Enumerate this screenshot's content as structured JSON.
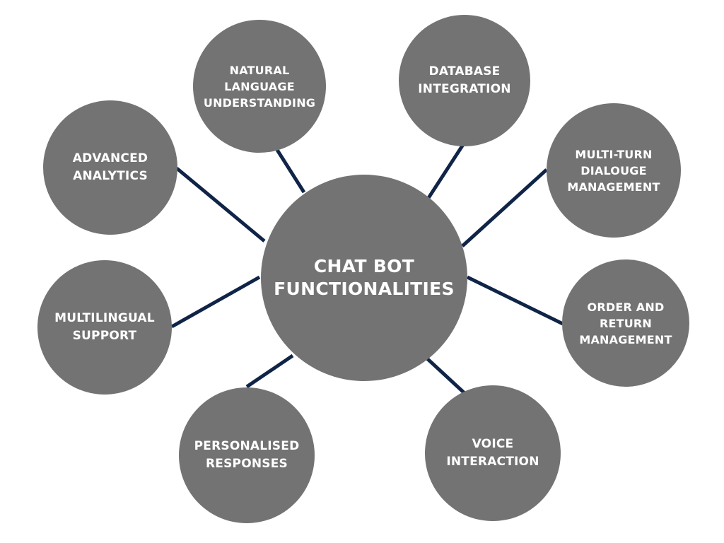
{
  "center": {
    "label": "CHAT BOT\nFUNCTIONALITIES"
  },
  "nodes": {
    "nlu": {
      "label": "NATURAL\nLANGUAGE\nUNDERSTANDING"
    },
    "database": {
      "label": "DATABASE\nINTEGRATION"
    },
    "analytics": {
      "label": "ADVANCED\nANALYTICS"
    },
    "multiturn": {
      "label": "MULTI-TURN\nDIALOUGE\nMANAGEMENT"
    },
    "multilingual": {
      "label": "MULTILINGUAL\nSUPPORT"
    },
    "order": {
      "label": "ORDER AND\nRETURN\nMANAGEMENT"
    },
    "personalised": {
      "label": "PERSONALISED\nRESPONSES"
    },
    "voice": {
      "label": "VOICE\nINTERACTION"
    }
  },
  "colors": {
    "node": "#737373",
    "connector": "#0f2447",
    "text": "#ffffff"
  }
}
